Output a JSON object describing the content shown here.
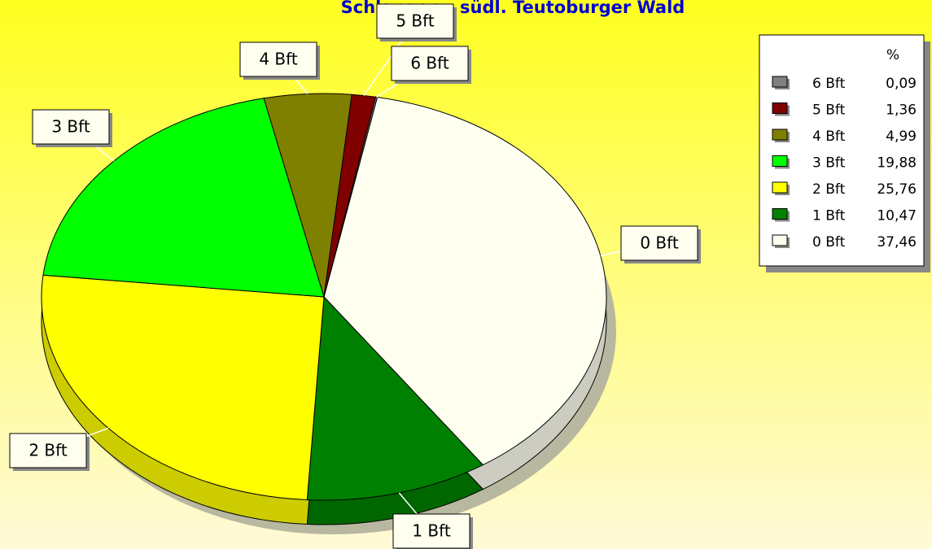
{
  "chart_data": {
    "type": "pie",
    "title": "Schlangen - südl. Teutoburger Wald",
    "categories": [
      "0 Bft",
      "1 Bft",
      "2 Bft",
      "3 Bft",
      "4 Bft",
      "5 Bft",
      "6 Bft"
    ],
    "values": [
      37.46,
      10.47,
      25.76,
      19.88,
      4.99,
      1.36,
      0.09
    ],
    "value_labels": [
      "37,46",
      "10,47",
      "25,76",
      "19,88",
      "4,99",
      "1,36",
      "0,09"
    ],
    "colors": [
      "#fffff0",
      "#008000",
      "#ffff00",
      "#00ff00",
      "#808000",
      "#800000",
      "#808080"
    ],
    "legend_title": "%",
    "legend": "top-right"
  }
}
